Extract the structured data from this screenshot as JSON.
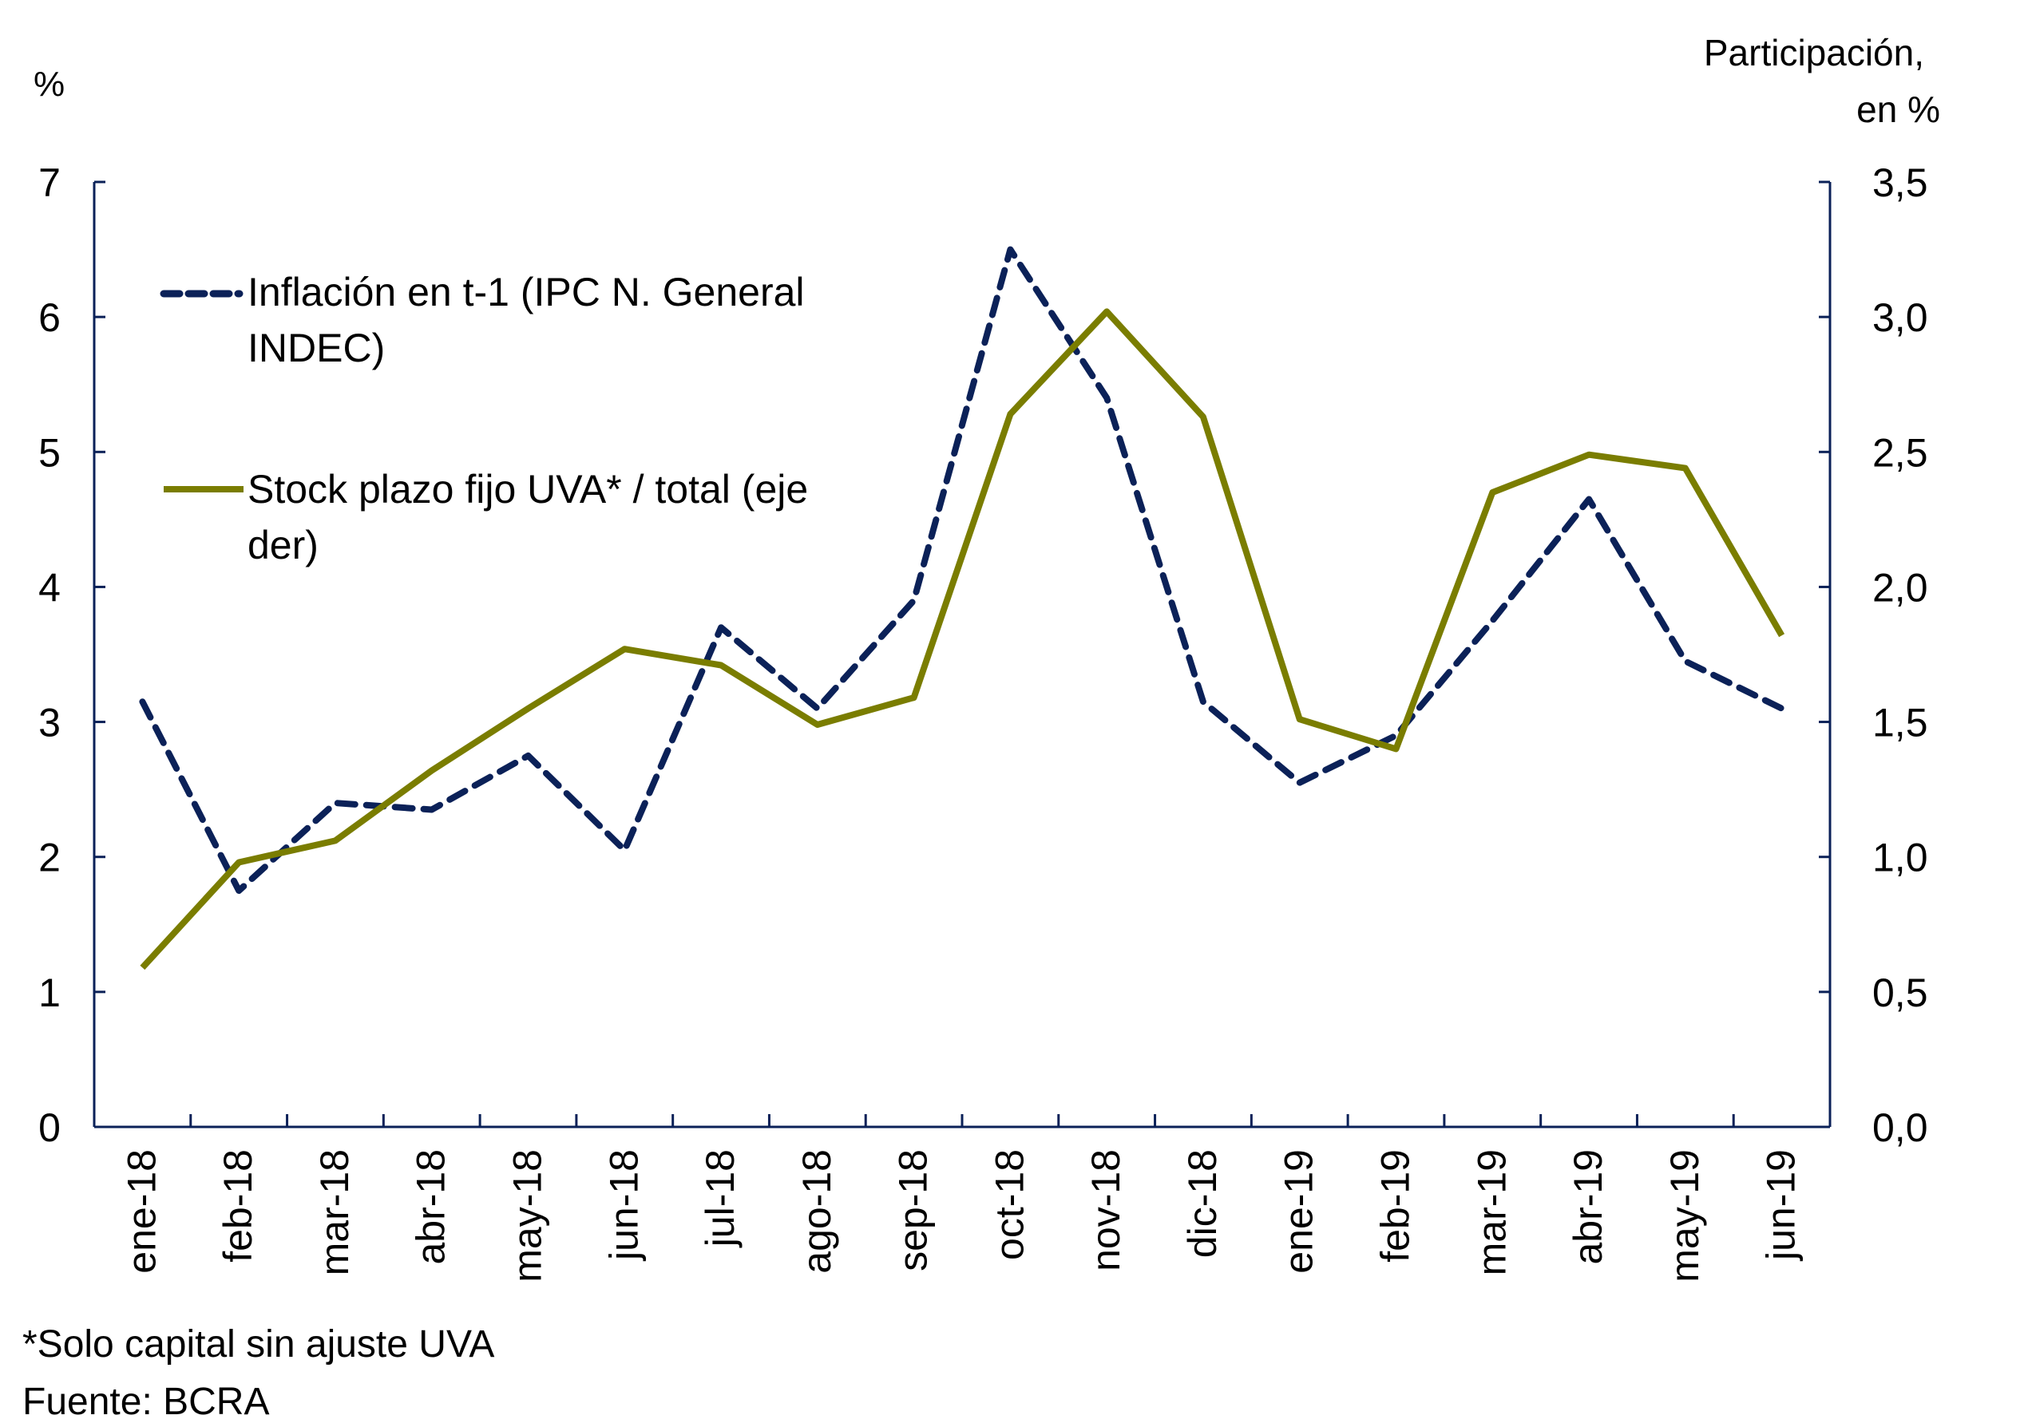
{
  "chart_data": {
    "type": "line",
    "title": "",
    "left_axis": {
      "unit_label": "%",
      "ylim": [
        0,
        7
      ],
      "ticks": [
        "0",
        "1",
        "2",
        "3",
        "4",
        "5",
        "6",
        "7"
      ]
    },
    "right_axis": {
      "unit_label_lines": [
        "Participación,",
        "en %"
      ],
      "ylim": [
        0,
        3.5
      ],
      "ticks": [
        "0,0",
        "0,5",
        "1,0",
        "1,5",
        "2,0",
        "2,5",
        "3,0",
        "3,5"
      ]
    },
    "categories": [
      "ene-18",
      "feb-18",
      "mar-18",
      "abr-18",
      "may-18",
      "jun-18",
      "jul-18",
      "ago-18",
      "sep-18",
      "oct-18",
      "nov-18",
      "dic-18",
      "ene-19",
      "feb-19",
      "mar-19",
      "abr-19",
      "may-19",
      "jun-19"
    ],
    "series": [
      {
        "name": "Inflación en t-1 (IPC N. General INDEC)",
        "legend_lines": [
          "Inflación en t-1 (IPC N. General",
          "INDEC)"
        ],
        "axis": "left",
        "style": "dashed",
        "color": "#0b2158",
        "values": [
          3.15,
          1.75,
          2.4,
          2.35,
          2.75,
          2.05,
          3.7,
          3.1,
          3.9,
          6.5,
          5.4,
          3.15,
          2.55,
          2.9,
          3.75,
          4.65,
          3.45,
          3.1
        ]
      },
      {
        "name": "Stock plazo fijo UVA* / total (eje der)",
        "legend_lines": [
          "Stock plazo fijo UVA* / total (eje",
          "der)"
        ],
        "axis": "right",
        "style": "solid",
        "color": "#7a7d00",
        "values": [
          0.59,
          0.98,
          1.06,
          1.32,
          1.55,
          1.77,
          1.71,
          1.49,
          1.59,
          2.64,
          3.02,
          2.63,
          1.51,
          1.4,
          2.35,
          2.49,
          2.44,
          1.82
        ]
      }
    ],
    "legend_placement": "top-left",
    "footnotes": [
      "*Solo capital sin ajuste UVA",
      "Fuente: BCRA"
    ],
    "axis_color": "#0b2158"
  }
}
